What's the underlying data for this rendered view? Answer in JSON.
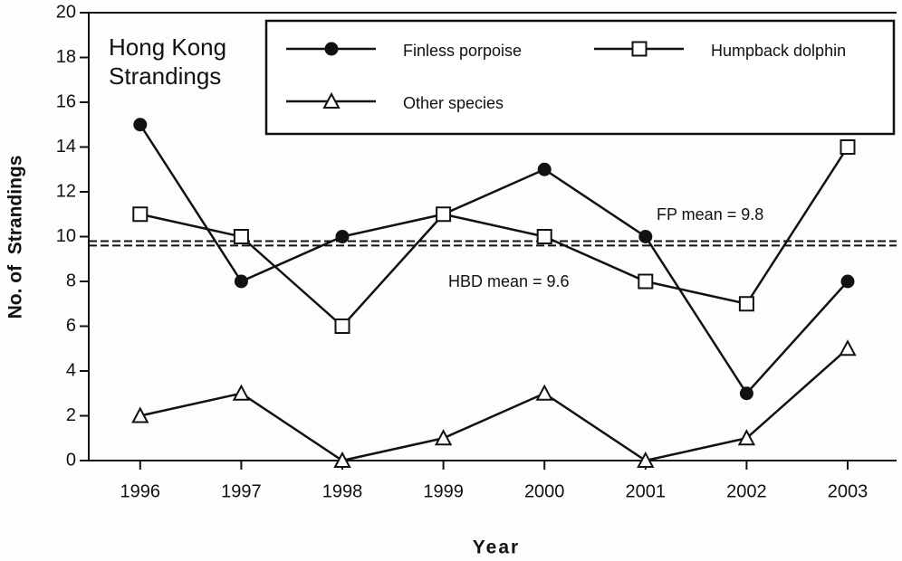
{
  "chart_data": {
    "type": "line",
    "title": "Hong Kong Strandings",
    "x_label": "Year",
    "y_label": "No. of  Strandings",
    "categories": [
      "1996",
      "1997",
      "1998",
      "1999",
      "2000",
      "2001",
      "2002",
      "2003"
    ],
    "series": [
      {
        "name": "Finless porpoise",
        "color": "#111111",
        "marker": "circle",
        "values": [
          15,
          8,
          10,
          11,
          13,
          10,
          3,
          8
        ]
      },
      {
        "name": "Humpback dolphin",
        "color": "#111111",
        "marker": "square",
        "values": [
          11,
          10,
          6,
          11,
          10,
          8,
          7,
          14
        ]
      },
      {
        "name": "Other species",
        "color": "#111111",
        "marker": "triangle",
        "values": [
          2,
          3,
          0,
          1,
          3,
          0,
          1,
          5
        ]
      }
    ],
    "reference_lines": [
      {
        "label": "FP mean = 9.8",
        "value": 9.8
      },
      {
        "label": "HBD mean = 9.6",
        "value": 9.6
      }
    ],
    "ylim": [
      0,
      20
    ],
    "yticks": [
      0,
      2,
      4,
      6,
      8,
      10,
      12,
      14,
      16,
      18,
      20
    ],
    "grid": false,
    "legend_position": "top-right"
  }
}
